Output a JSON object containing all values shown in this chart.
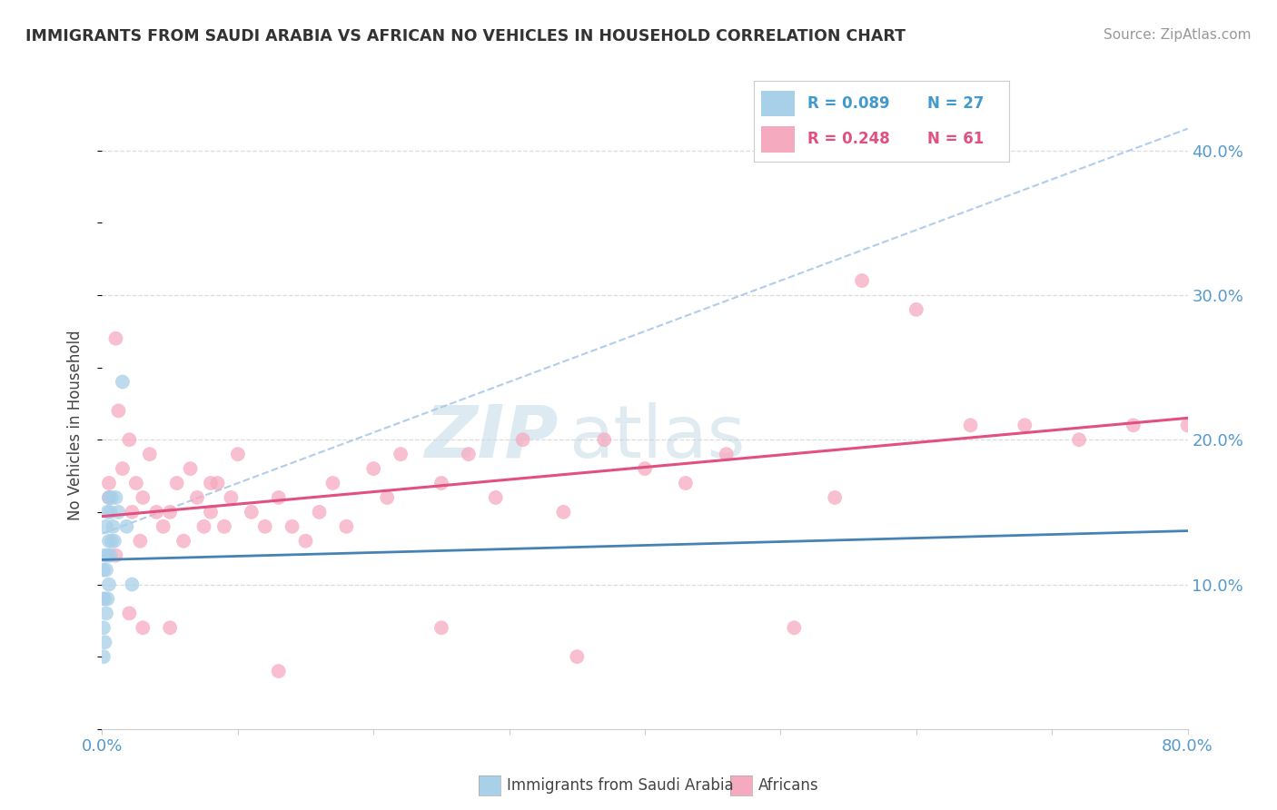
{
  "title": "IMMIGRANTS FROM SAUDI ARABIA VS AFRICAN NO VEHICLES IN HOUSEHOLD CORRELATION CHART",
  "source_text": "Source: ZipAtlas.com",
  "ylabel": "No Vehicles in Household",
  "xlim": [
    0.0,
    0.8
  ],
  "ylim": [
    0.0,
    0.42
  ],
  "color_blue": "#A8D0E8",
  "color_pink": "#F5AABF",
  "color_line_blue": "#4682B4",
  "color_line_pink": "#E05080",
  "color_dashed": "#A8C8E8",
  "watermark_zip": "ZIP",
  "watermark_atlas": "atlas",
  "legend_r1": "R = 0.089",
  "legend_n1": "N = 27",
  "legend_r2": "R = 0.248",
  "legend_n2": "N = 61",
  "blue_x": [
    0.001,
    0.001,
    0.001,
    0.001,
    0.002,
    0.002,
    0.002,
    0.003,
    0.003,
    0.003,
    0.004,
    0.004,
    0.004,
    0.005,
    0.005,
    0.005,
    0.006,
    0.006,
    0.007,
    0.007,
    0.008,
    0.009,
    0.01,
    0.012,
    0.015,
    0.018,
    0.022
  ],
  "blue_y": [
    0.05,
    0.07,
    0.09,
    0.11,
    0.06,
    0.09,
    0.12,
    0.08,
    0.11,
    0.14,
    0.09,
    0.12,
    0.15,
    0.1,
    0.13,
    0.16,
    0.12,
    0.15,
    0.13,
    0.16,
    0.14,
    0.13,
    0.16,
    0.15,
    0.24,
    0.14,
    0.1
  ],
  "pink_x": [
    0.005,
    0.01,
    0.012,
    0.015,
    0.02,
    0.022,
    0.025,
    0.028,
    0.03,
    0.035,
    0.04,
    0.045,
    0.05,
    0.055,
    0.06,
    0.065,
    0.07,
    0.075,
    0.08,
    0.085,
    0.09,
    0.095,
    0.1,
    0.11,
    0.12,
    0.13,
    0.14,
    0.15,
    0.16,
    0.17,
    0.18,
    0.2,
    0.21,
    0.22,
    0.25,
    0.27,
    0.29,
    0.31,
    0.34,
    0.35,
    0.37,
    0.4,
    0.43,
    0.46,
    0.51,
    0.54,
    0.56,
    0.6,
    0.64,
    0.68,
    0.72,
    0.76,
    0.8,
    0.25,
    0.13,
    0.08,
    0.05,
    0.03,
    0.02,
    0.01,
    0.005
  ],
  "pink_y": [
    0.16,
    0.27,
    0.22,
    0.18,
    0.2,
    0.15,
    0.17,
    0.13,
    0.16,
    0.19,
    0.15,
    0.14,
    0.15,
    0.17,
    0.13,
    0.18,
    0.16,
    0.14,
    0.15,
    0.17,
    0.14,
    0.16,
    0.19,
    0.15,
    0.14,
    0.16,
    0.14,
    0.13,
    0.15,
    0.17,
    0.14,
    0.18,
    0.16,
    0.19,
    0.17,
    0.19,
    0.16,
    0.2,
    0.15,
    0.05,
    0.2,
    0.18,
    0.17,
    0.19,
    0.07,
    0.16,
    0.31,
    0.29,
    0.21,
    0.21,
    0.2,
    0.21,
    0.21,
    0.07,
    0.04,
    0.17,
    0.07,
    0.07,
    0.08,
    0.12,
    0.17
  ],
  "blue_line_x0": 0.0,
  "blue_line_x1": 0.8,
  "blue_line_y0": 0.117,
  "blue_line_y1": 0.137,
  "pink_line_x0": 0.0,
  "pink_line_x1": 0.8,
  "pink_line_y0": 0.147,
  "pink_line_y1": 0.215,
  "dashed_line_x0": 0.0,
  "dashed_line_x1": 0.8,
  "dashed_line_y0": 0.135,
  "dashed_line_y1": 0.415
}
